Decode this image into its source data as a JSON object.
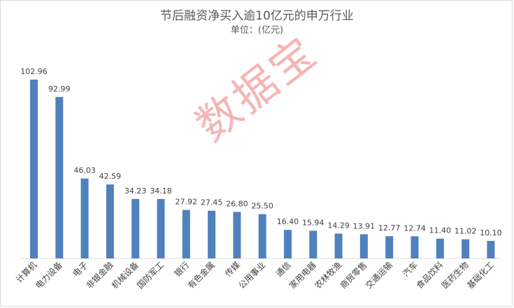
{
  "chart_data": {
    "type": "bar",
    "title": "节后融资净买入逾10亿元的申万行业",
    "subtitle": "单位：(亿元)",
    "categories": [
      "计算机",
      "电力设备",
      "电子",
      "非银金融",
      "机械设备",
      "国防军工",
      "银行",
      "有色金属",
      "传媒",
      "公用事业",
      "通信",
      "家用电器",
      "农林牧渔",
      "商贸零售",
      "交通运输",
      "汽车",
      "食品饮料",
      "医药生物",
      "基础化工"
    ],
    "values": [
      102.96,
      92.99,
      46.03,
      42.59,
      34.23,
      34.18,
      27.92,
      27.45,
      26.8,
      25.5,
      16.4,
      15.94,
      14.29,
      13.91,
      12.77,
      12.74,
      11.4,
      11.02,
      10.1
    ],
    "value_labels": [
      "102.96",
      "92.99",
      "46.03",
      "42.59",
      "34.23",
      "34.18",
      "27.92",
      "27.45",
      "26.80",
      "25.50",
      "16.40",
      "15.94",
      "14.29",
      "13.91",
      "12.77",
      "12.74",
      "11.40",
      "11.02",
      "10.10"
    ],
    "ylim": [
      0,
      102.96
    ],
    "bar_color": "#4f81bd",
    "grid": false,
    "legend": "none"
  },
  "watermark": "数据宝"
}
